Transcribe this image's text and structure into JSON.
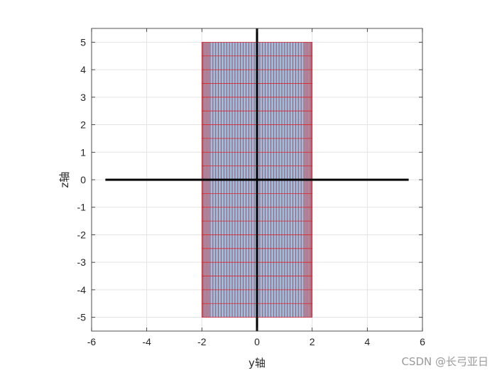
{
  "chart_data": {
    "type": "mesh",
    "xlabel": "y轴",
    "ylabel": "z轴",
    "xlim": [
      -6,
      6
    ],
    "ylim": [
      -5.5,
      5.5
    ],
    "xticks": [
      -6,
      -4,
      -2,
      0,
      2,
      4,
      6
    ],
    "yticks": [
      -5,
      -4,
      -3,
      -2,
      -1,
      0,
      1,
      2,
      3,
      4,
      5
    ],
    "grid": true,
    "box": true,
    "surface": {
      "y_range": [
        -2,
        2
      ],
      "z_range": [
        -5,
        5
      ],
      "z_lines": [
        -5,
        -4.5,
        -4,
        -3.5,
        -3,
        -2.5,
        -2,
        -1.5,
        -1,
        -0.5,
        0,
        0.5,
        1,
        1.5,
        2,
        2.5,
        3,
        3.5,
        4,
        4.5,
        5
      ],
      "y_lines": [
        -2,
        -1.98,
        -1.95,
        -1.9,
        -1.85,
        -1.8,
        -1.75,
        -1.7,
        -1.6,
        -1.5,
        -1.4,
        -1.3,
        -1.2,
        -1.1,
        -1.0,
        -0.9,
        -0.8,
        -0.7,
        -0.6,
        -0.5,
        -0.4,
        -0.3,
        -0.2,
        -0.1,
        0,
        0.1,
        0.2,
        0.3,
        0.4,
        0.5,
        0.6,
        0.7,
        0.8,
        0.9,
        1.0,
        1.1,
        1.2,
        1.3,
        1.4,
        1.5,
        1.6,
        1.7,
        1.75,
        1.8,
        1.85,
        1.9,
        1.95,
        1.98,
        2
      ],
      "face_color": "#8ec3e6",
      "edge_color": "#d9262c"
    },
    "black_lines": [
      {
        "name": "horizontal-axis-line",
        "x": [
          -5.5,
          5.5
        ],
        "y": [
          0,
          0
        ]
      },
      {
        "name": "vertical-axis-line",
        "x": [
          0,
          0
        ],
        "y": [
          -5.5,
          5.5
        ]
      }
    ],
    "black_line_color": "#000000"
  },
  "watermark": "CSDN @长弓亚日"
}
